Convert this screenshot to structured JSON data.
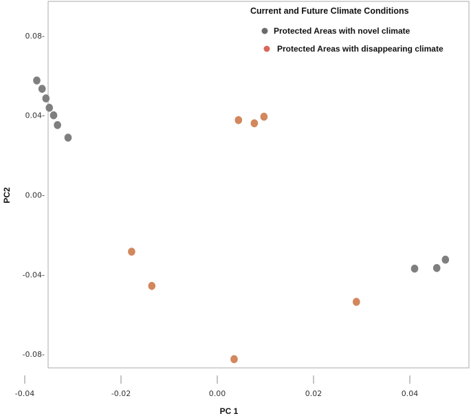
{
  "chart_data": {
    "type": "scatter",
    "title": "",
    "xlabel": "PC 1",
    "ylabel": "PC2",
    "xlim": [
      -0.044,
      0.052
    ],
    "ylim": [
      -0.09,
      0.095
    ],
    "x_ticks": [
      {
        "value": -0.04,
        "label": "-0.04"
      },
      {
        "value": -0.02,
        "label": "-0.02"
      },
      {
        "value": 0.0,
        "label": "0.00"
      },
      {
        "value": 0.02,
        "label": "0.02"
      },
      {
        "value": 0.04,
        "label": "0.04"
      }
    ],
    "y_ticks": [
      {
        "value": 0.08,
        "label": "0.08-"
      },
      {
        "value": 0.04,
        "label": "0.04-"
      },
      {
        "value": 0.0,
        "label": "0.00-"
      },
      {
        "value": -0.04,
        "label": "-0.04-"
      },
      {
        "value": -0.08,
        "label": "-0.08-"
      }
    ],
    "grid": false,
    "legend": {
      "title": "Current and Future Climate Conditions",
      "position": "top-right"
    },
    "series": [
      {
        "name": "Protected Areas with novel climate",
        "color": "#7f7f7f",
        "points": [
          {
            "x": -0.0375,
            "y": 0.0575
          },
          {
            "x": -0.0364,
            "y": 0.0533
          },
          {
            "x": -0.0356,
            "y": 0.0485
          },
          {
            "x": -0.0349,
            "y": 0.0438
          },
          {
            "x": -0.034,
            "y": 0.04
          },
          {
            "x": -0.0332,
            "y": 0.0351
          },
          {
            "x": -0.031,
            "y": 0.0288
          },
          {
            "x": 0.041,
            "y": -0.037
          },
          {
            "x": 0.0456,
            "y": -0.0367
          },
          {
            "x": 0.0474,
            "y": -0.0325
          }
        ]
      },
      {
        "name": "Protected Areas with disappearing climate",
        "color": "#d2875c",
        "points": [
          {
            "x": 0.0044,
            "y": 0.0376
          },
          {
            "x": 0.0077,
            "y": 0.036
          },
          {
            "x": 0.0097,
            "y": 0.0393
          },
          {
            "x": -0.0178,
            "y": -0.0285
          },
          {
            "x": -0.0136,
            "y": -0.0457
          },
          {
            "x": 0.0289,
            "y": -0.0537
          },
          {
            "x": 0.0035,
            "y": -0.0825
          }
        ]
      }
    ]
  }
}
